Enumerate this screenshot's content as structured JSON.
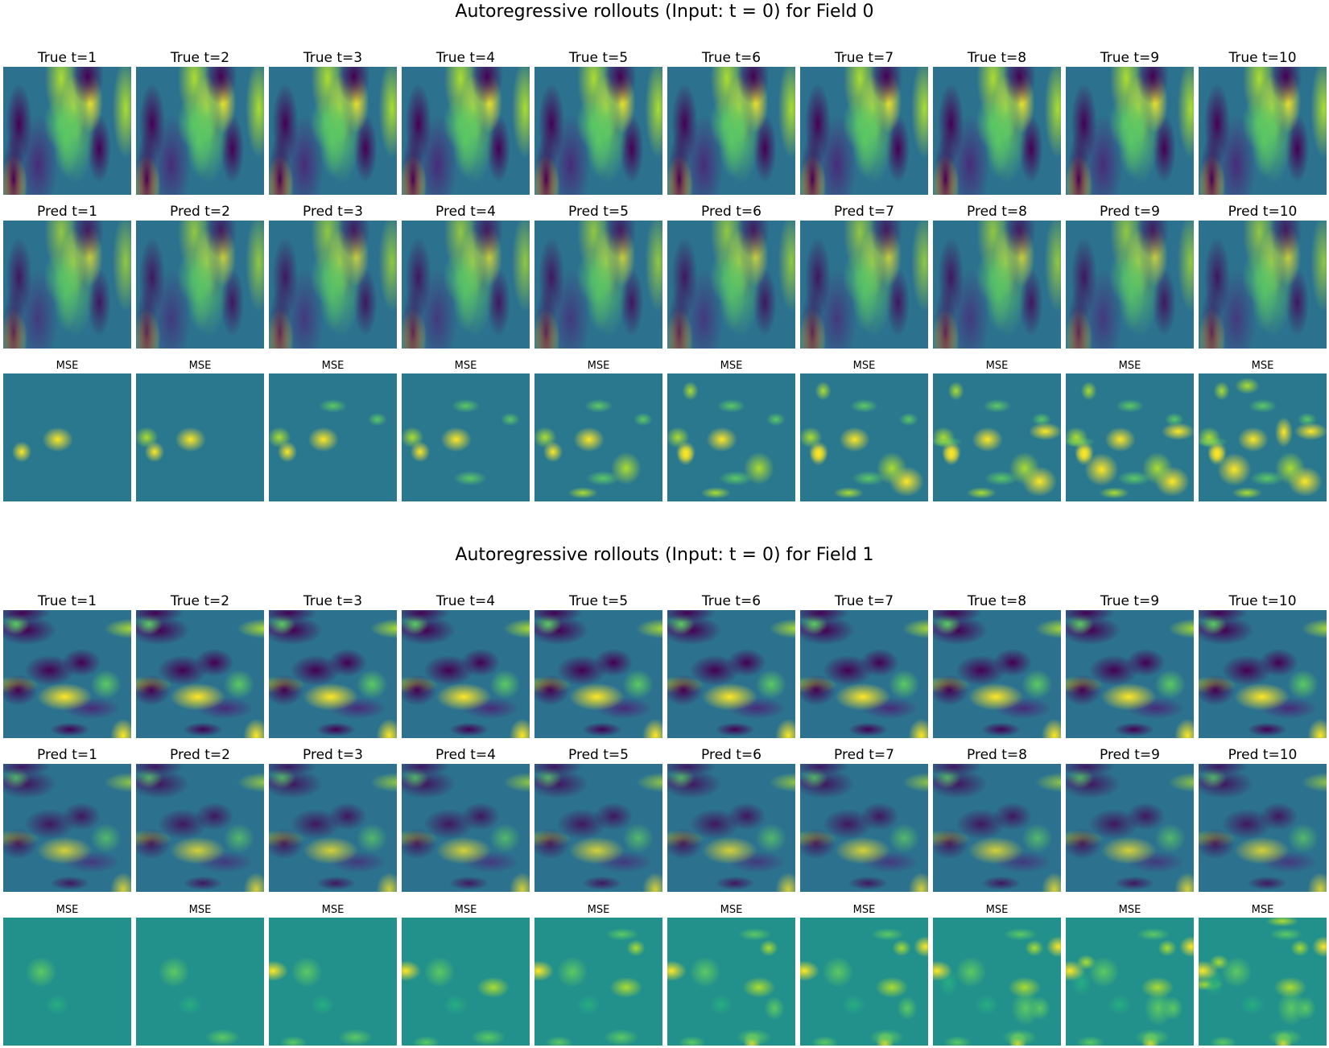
{
  "figures": [
    {
      "title": "Autoregressive rollouts (Input: t = 0) for Field 0",
      "true_titles": [
        "True t=1",
        "True t=2",
        "True t=3",
        "True t=4",
        "True t=5",
        "True t=6",
        "True t=7",
        "True t=8",
        "True t=9",
        "True t=10"
      ],
      "pred_titles": [
        "Pred t=1",
        "Pred t=2",
        "Pred t=3",
        "Pred t=4",
        "Pred t=5",
        "Pred t=6",
        "Pred t=7",
        "Pred t=8",
        "Pred t=9",
        "Pred t=10"
      ],
      "mse_titles": [
        "MSE",
        "MSE",
        "MSE",
        "MSE",
        "MSE",
        "MSE",
        "MSE",
        "MSE",
        "MSE",
        "MSE"
      ]
    },
    {
      "title": "Autoregressive rollouts (Input: t = 0) for Field 1",
      "true_titles": [
        "True t=1",
        "True t=2",
        "True t=3",
        "True t=4",
        "True t=5",
        "True t=6",
        "True t=7",
        "True t=8",
        "True t=9",
        "True t=10"
      ],
      "pred_titles": [
        "Pred t=1",
        "Pred t=2",
        "Pred t=3",
        "Pred t=4",
        "Pred t=5",
        "Pred t=6",
        "Pred t=7",
        "Pred t=8",
        "Pred t=9",
        "Pred t=10"
      ],
      "mse_titles": [
        "MSE",
        "MSE",
        "MSE",
        "MSE",
        "MSE",
        "MSE",
        "MSE",
        "MSE",
        "MSE",
        "MSE"
      ]
    }
  ],
  "chart_data": {
    "type": "heatmap",
    "colormap": "viridis",
    "timesteps": [
      1,
      2,
      3,
      4,
      5,
      6,
      7,
      8,
      9,
      10
    ],
    "fields": [
      "Field 0",
      "Field 1"
    ],
    "rows": [
      "True",
      "Pred",
      "MSE"
    ],
    "colors": {
      "low": "#440154",
      "mid": "#21908d",
      "high": "#fde725"
    }
  }
}
